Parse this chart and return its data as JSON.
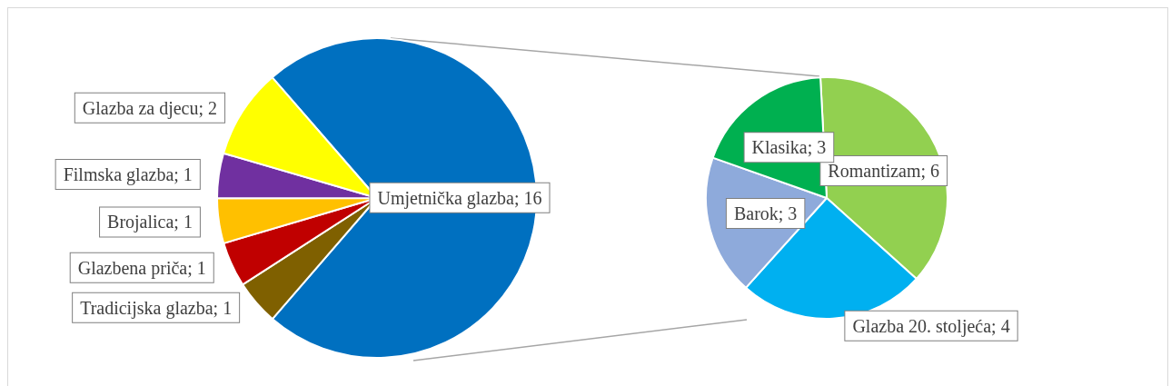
{
  "chart_data": [
    {
      "type": "pie",
      "categories": [
        "Umjetnička glazba",
        "Tradicijska glazba",
        "Glazbena priča",
        "Brojalica",
        "Filmska glazba",
        "Glazba za djecu"
      ],
      "values": [
        16,
        1,
        1,
        1,
        1,
        2
      ],
      "value_labels": [
        "; 16",
        "; 1",
        "; 1",
        "; 1",
        "; 1",
        "; 2"
      ],
      "colors": [
        "#0070c0",
        "#7f6000",
        "#c00000",
        "#ffc000",
        "#7030a0",
        "#ffff00"
      ]
    },
    {
      "type": "pie",
      "categories": [
        "Romantizam",
        "Glazba 20. stoljeća",
        "Barok",
        "Klasika"
      ],
      "values": [
        6,
        4,
        3,
        3
      ],
      "value_labels": [
        "; 6",
        "; 4",
        "; 3",
        "; 3"
      ],
      "colors": [
        "#92d050",
        "#00b0f0",
        "#8eaadb",
        "#00b050"
      ]
    }
  ]
}
